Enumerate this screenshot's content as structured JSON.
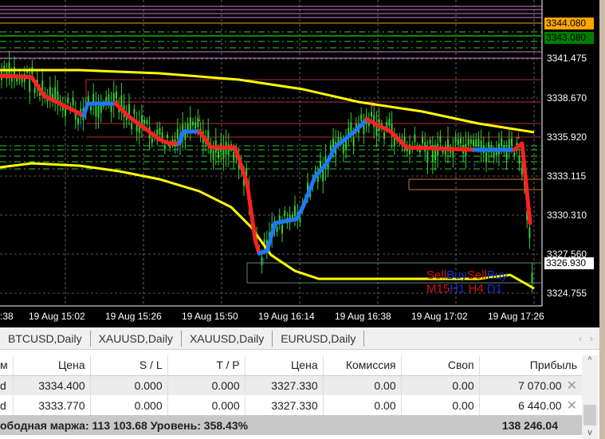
{
  "chart": {
    "price_axis": [
      "3341.475",
      "3338.670",
      "3335.920",
      "3333.115",
      "3330.310",
      "3327.560",
      "3324.755"
    ],
    "tags": [
      {
        "text": "3344.080",
        "bg": "#ffa500",
        "color": "#000"
      },
      {
        "text": "3343.080",
        "bg": "#008000",
        "color": "#000"
      },
      {
        "text": "3326.930",
        "bg": "#ffffff",
        "color": "#000"
      }
    ],
    "time_axis": [
      ":38",
      "19 Aug 15:02",
      "19 Aug 15:26",
      "19 Aug 15:50",
      "19 Aug 16:14",
      "19 Aug 16:38",
      "19 Aug 17:02",
      "19 Aug 17:26"
    ],
    "indicator": {
      "row1": [
        {
          "t": "Sell",
          "c": "#d01010"
        },
        {
          "t": "Buy",
          "c": "#1030d0"
        },
        {
          "t": "Sell",
          "c": "#d01010"
        },
        {
          "t": "Buy",
          "c": "#1030d0"
        }
      ],
      "row2": [
        {
          "t": "M15",
          "c": "#d01010"
        },
        {
          "t": "H1",
          "c": "#1030d0"
        },
        {
          "t": "H4",
          "c": "#d01010"
        },
        {
          "t": "D1",
          "c": "#1030d0"
        }
      ]
    },
    "colors": {
      "candle": "#32cd32",
      "sell_line": "#ff2020",
      "buy_line": "#1e78ff",
      "envelope": "#ffff00"
    }
  },
  "tabs": [
    "BTCUSD,Daily",
    "XAUUSD,Daily",
    "XAUUSD,Daily",
    "EURUSD,Daily"
  ],
  "table": {
    "headers": [
      "м",
      "Цена",
      "S / L",
      "T / P",
      "Цена",
      "Комиссия",
      "Своп",
      "Прибыль"
    ],
    "rows": [
      [
        "d",
        "3334.400",
        "0.000",
        "0.000",
        "3327.330",
        "0.00",
        "0.00",
        "7 070.00"
      ],
      [
        "d",
        "3333.770",
        "0.000",
        "0.000",
        "3327.330",
        "0.00",
        "0.00",
        "6 440.00"
      ]
    ],
    "footer": "ободная маржа: 113 103.68  Уровень: 358.43%",
    "total": "138 246.04"
  }
}
